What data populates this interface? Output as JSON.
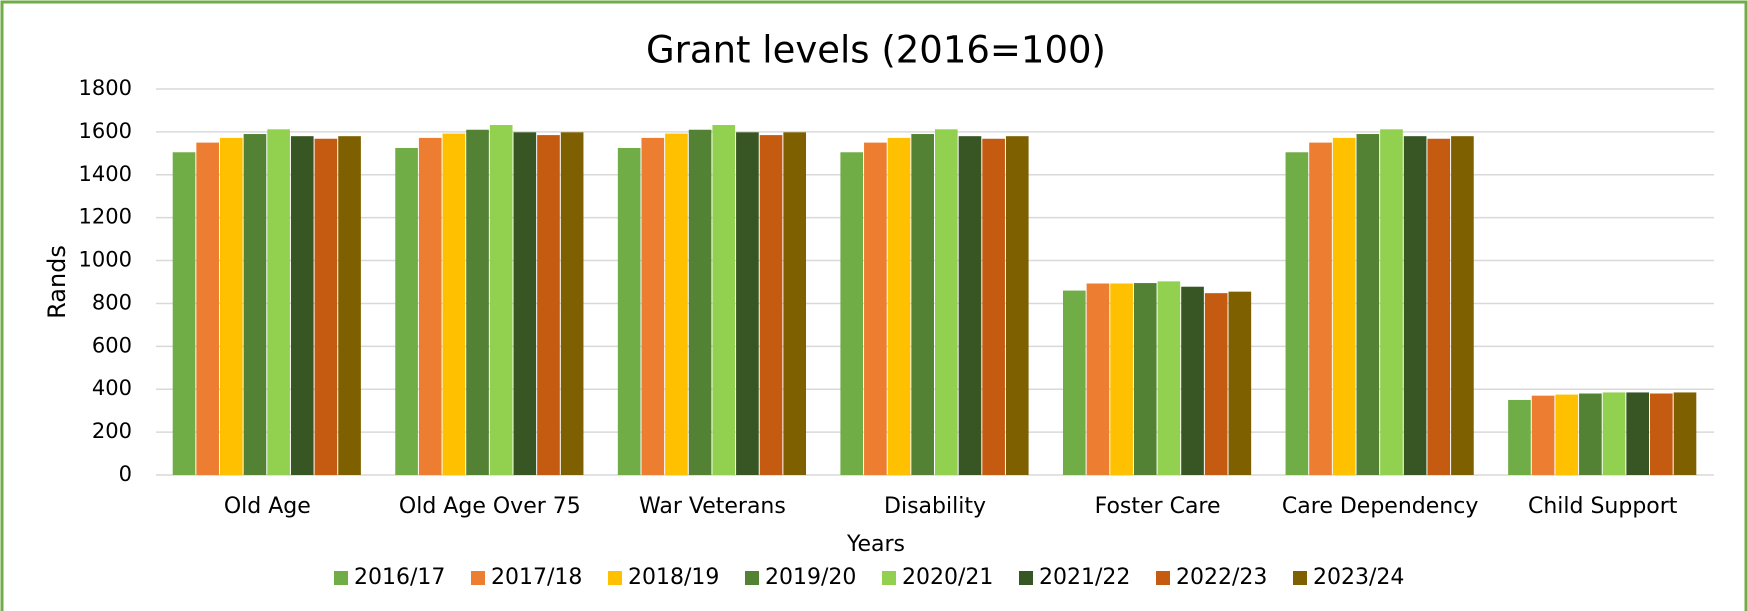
{
  "chart_data": {
    "type": "bar",
    "title": "Grant levels (2016=100)",
    "x_label": "Years",
    "y_label": "Rands",
    "categories": [
      "Old Age",
      "Old Age Over 75",
      "War Veterans",
      "Disability",
      "Foster Care",
      "Care Dependency",
      "Child Support"
    ],
    "series": [
      {
        "name": "2016/17",
        "color": "#70ad47",
        "values": [
          1505,
          1525,
          1525,
          1505,
          860,
          1505,
          350
        ]
      },
      {
        "name": "2017/18",
        "color": "#ed7d31",
        "values": [
          1550,
          1572,
          1572,
          1550,
          893,
          1550,
          370
        ]
      },
      {
        "name": "2018/19",
        "color": "#ffc000",
        "values": [
          1572,
          1592,
          1592,
          1572,
          893,
          1572,
          375
        ]
      },
      {
        "name": "2019/20",
        "color": "#548235",
        "values": [
          1590,
          1610,
          1610,
          1590,
          895,
          1590,
          380
        ]
      },
      {
        "name": "2020/21",
        "color": "#92d050",
        "values": [
          1612,
          1632,
          1632,
          1612,
          903,
          1612,
          385
        ]
      },
      {
        "name": "2021/22",
        "color": "#375623",
        "values": [
          1580,
          1598,
          1598,
          1580,
          878,
          1580,
          385
        ]
      },
      {
        "name": "2022/23",
        "color": "#c55a11",
        "values": [
          1568,
          1585,
          1585,
          1568,
          848,
          1568,
          380
        ]
      },
      {
        "name": "2023/24",
        "color": "#7f6000",
        "values": [
          1580,
          1598,
          1598,
          1580,
          855,
          1580,
          385
        ]
      }
    ],
    "ylim": [
      0,
      1800
    ],
    "yticks": [
      0,
      200,
      400,
      600,
      800,
      1000,
      1200,
      1400,
      1600,
      1800
    ],
    "grid": true,
    "legend": "bottom"
  }
}
